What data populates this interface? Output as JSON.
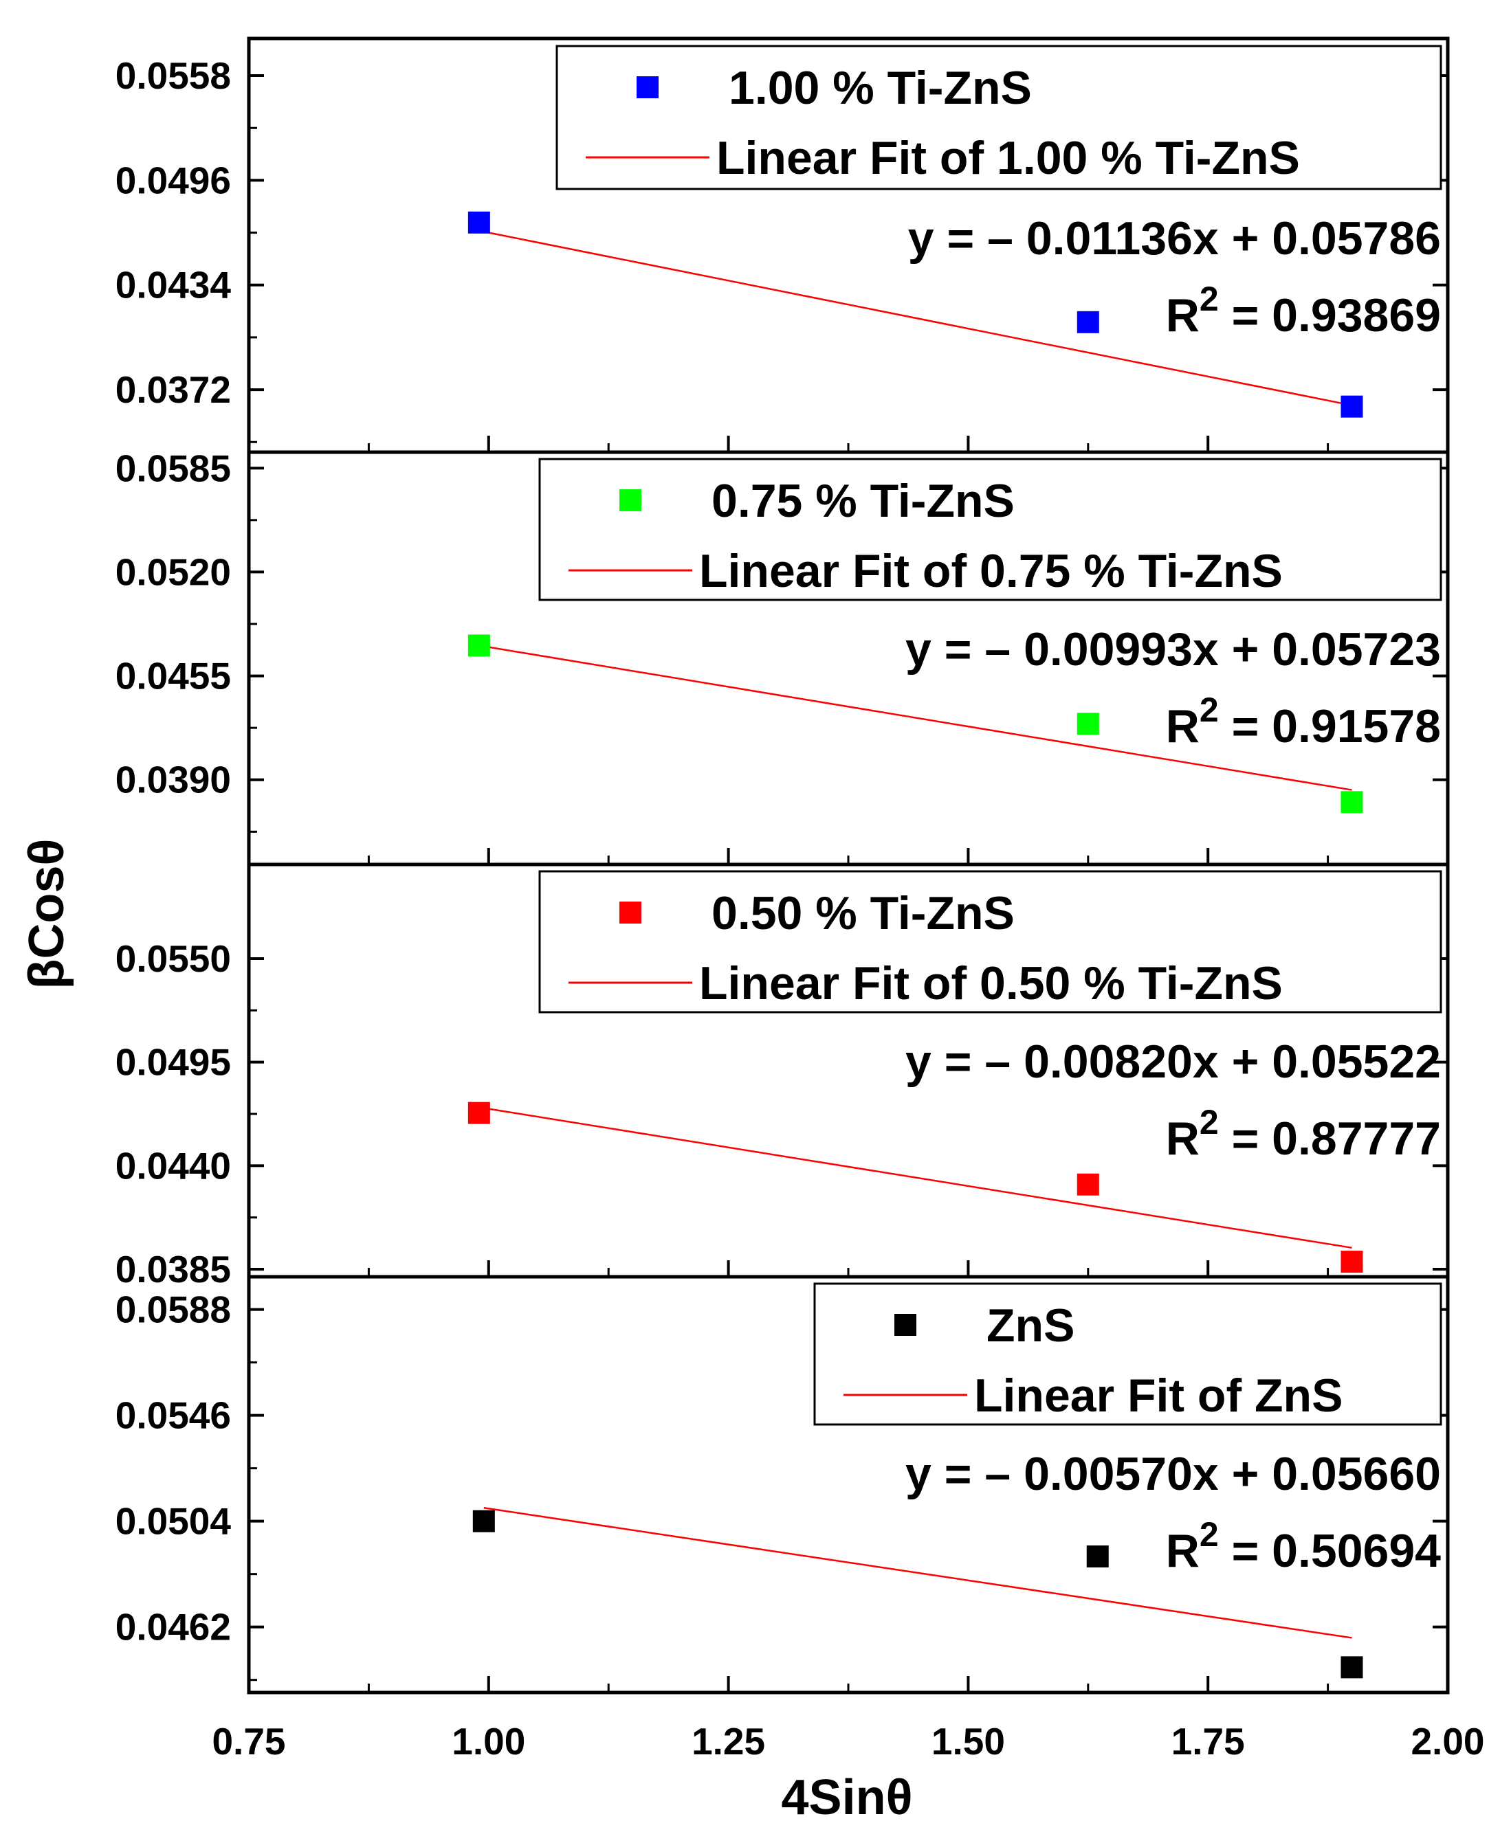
{
  "chart_data": {
    "type": "scatter",
    "x_axis": {
      "label": "4Sinθ",
      "range": [
        0.75,
        2.0
      ],
      "ticks": [
        "0.75",
        "1.00",
        "1.25",
        "1.50",
        "1.75",
        "2.00"
      ]
    },
    "y_axis_label": "βCosθ",
    "panels": [
      {
        "name": "1.00 % Ti-ZnS",
        "fit_label": "Linear Fit of 1.00 % Ti-ZnS",
        "equation": "y = – 0.01136x + 0.05786",
        "r2_value": "= 0.93869",
        "color": "#0000ff",
        "ylim": [
          0.0335,
          0.058
        ],
        "y_ticks": [
          "0.0558",
          "0.0496",
          "0.0434",
          "0.0372"
        ],
        "x": [
          0.99,
          1.625,
          1.9
        ],
        "y": [
          0.0471,
          0.0412,
          0.0362
        ],
        "fit": {
          "slope": -0.01136,
          "intercept": 0.05786
        }
      },
      {
        "name": "0.75 % Ti-ZnS",
        "fit_label": "Linear Fit of 0.75 % Ti-ZnS",
        "equation": "y = – 0.00993x + 0.05723",
        "r2_value": "= 0.91578",
        "color": "#00ff00",
        "ylim": [
          0.0337,
          0.0595
        ],
        "y_ticks": [
          "0.0585",
          "0.0520",
          "0.0455",
          "0.0390"
        ],
        "x": [
          0.99,
          1.625,
          1.9
        ],
        "y": [
          0.0474,
          0.0425,
          0.0376
        ],
        "fit": {
          "slope": -0.00993,
          "intercept": 0.05723
        }
      },
      {
        "name": "0.50 % Ti-ZnS",
        "fit_label": "Linear Fit of 0.50 % Ti-ZnS",
        "equation": "y = – 0.00820x + 0.05522",
        "r2_value": "= 0.87777",
        "color": "#ff0000",
        "ylim": [
          0.0381,
          0.06
        ],
        "y_ticks": [
          "0.0550",
          "0.0495",
          "0.0440",
          "0.0385"
        ],
        "x": [
          0.99,
          1.625,
          1.9
        ],
        "y": [
          0.0468,
          0.043,
          0.0389
        ],
        "fit": {
          "slope": -0.0082,
          "intercept": 0.05522
        }
      },
      {
        "name": "ZnS",
        "fit_label": "Linear Fit of ZnS",
        "equation": "y = – 0.00570x + 0.05660",
        "r2_value": "= 0.50694",
        "color": "#000000",
        "ylim": [
          0.0436,
          0.0601
        ],
        "y_ticks": [
          "0.0588",
          "0.0546",
          "0.0504",
          "0.0462"
        ],
        "x": [
          0.995,
          1.635,
          1.9
        ],
        "y": [
          0.0504,
          0.049,
          0.0446
        ],
        "fit": {
          "slope": -0.0057,
          "intercept": 0.0566
        }
      }
    ]
  }
}
